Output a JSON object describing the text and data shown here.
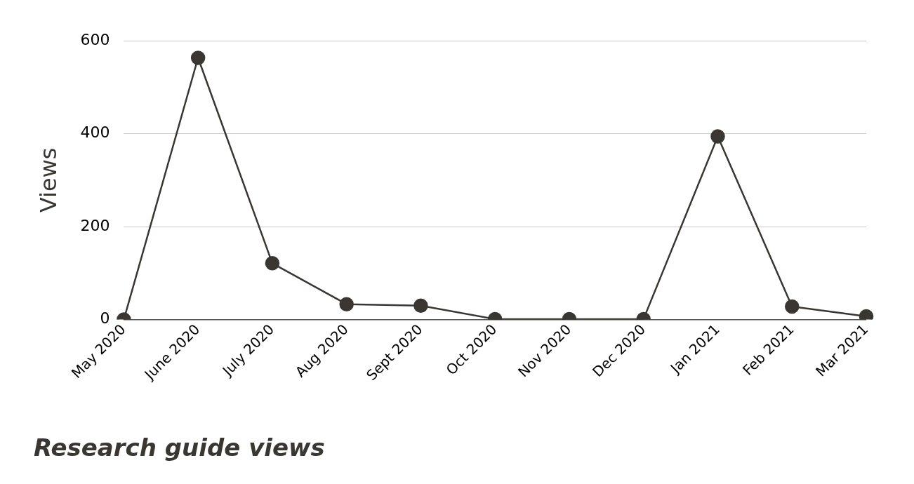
{
  "chart_data": {
    "type": "line",
    "title": "Research guide views",
    "ylabel": "Views",
    "categories": [
      "May 2020",
      "June 2020",
      "July 2020",
      "Aug 2020",
      "Sept 2020",
      "Oct 2020",
      "Nov 2020",
      "Dec 2020",
      "Jan 2021",
      "Feb 2021",
      "Mar 2021"
    ],
    "series": [
      {
        "color": "#3a3632",
        "values": [
          0,
          563,
          121,
          33,
          30,
          1,
          1,
          1,
          394,
          28,
          7
        ]
      }
    ],
    "ylim": [
      0,
      600
    ],
    "yticks": [
      0,
      200,
      400,
      600
    ],
    "grid": "y",
    "legend": false,
    "marker": "circle",
    "line_style": "solid"
  }
}
